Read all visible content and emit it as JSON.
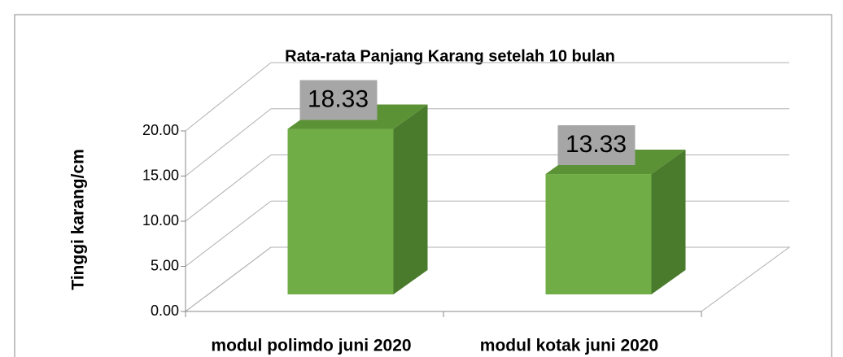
{
  "chart_data": {
    "type": "bar3d",
    "title": "Rata-rata Panjang Karang setelah 10 bulan",
    "y_label": "Tinggi karang/cm",
    "categories": [
      "modul polimdo juni  2020",
      "modul kotak juni 2020"
    ],
    "values": [
      18.33,
      13.33
    ],
    "color": "#70ad47",
    "ylim": [
      0,
      20
    ],
    "yticks": [
      {
        "value": 0,
        "label": "0.00"
      },
      {
        "value": 5,
        "label": "5.00"
      },
      {
        "value": 10,
        "label": "10.00"
      },
      {
        "value": 15,
        "label": "15.00"
      },
      {
        "value": 20,
        "label": "20.00"
      }
    ],
    "grid": true
  }
}
